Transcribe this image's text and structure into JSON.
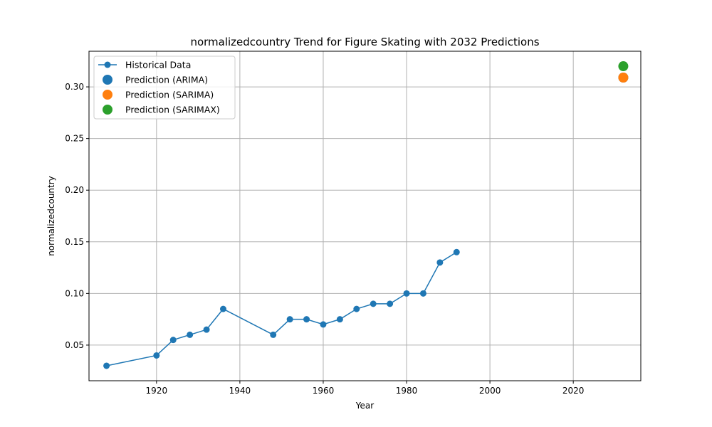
{
  "chart_data": {
    "type": "line",
    "title": "normalizedcountry Trend for Figure Skating with 2032 Predictions",
    "xlabel": "Year",
    "ylabel": "normalizedcountry",
    "xlim": [
      1903.8,
      2036.2
    ],
    "ylim": [
      0.0155,
      0.3345
    ],
    "xticks": [
      1920,
      1940,
      1960,
      1980,
      2000,
      2020
    ],
    "yticks": [
      0.05,
      0.1,
      0.15,
      0.2,
      0.25,
      0.3
    ],
    "ytick_labels": [
      "0.05",
      "0.10",
      "0.15",
      "0.20",
      "0.25",
      "0.30"
    ],
    "grid": true,
    "legend_position": "upper-left",
    "series": [
      {
        "name": "Historical Data",
        "kind": "line-with-markers",
        "color": "#1f77b4",
        "x": [
          1908,
          1920,
          1924,
          1928,
          1932,
          1936,
          1948,
          1952,
          1956,
          1960,
          1964,
          1968,
          1972,
          1976,
          1980,
          1984,
          1988,
          1992
        ],
        "y": [
          0.03,
          0.04,
          0.055,
          0.06,
          0.065,
          0.085,
          0.06,
          0.075,
          0.075,
          0.07,
          0.075,
          0.085,
          0.09,
          0.09,
          0.1,
          0.1,
          0.13,
          0.14
        ]
      },
      {
        "name": "Prediction (ARIMA)",
        "kind": "scatter",
        "color": "#1f77b4",
        "x": [
          2032
        ],
        "y": [
          0.309
        ]
      },
      {
        "name": "Prediction (SARIMA)",
        "kind": "scatter",
        "color": "#ff7f0e",
        "x": [
          2032
        ],
        "y": [
          0.309
        ]
      },
      {
        "name": "Prediction (SARIMAX)",
        "kind": "scatter",
        "color": "#2ca02c",
        "x": [
          2032
        ],
        "y": [
          0.32
        ]
      }
    ]
  }
}
